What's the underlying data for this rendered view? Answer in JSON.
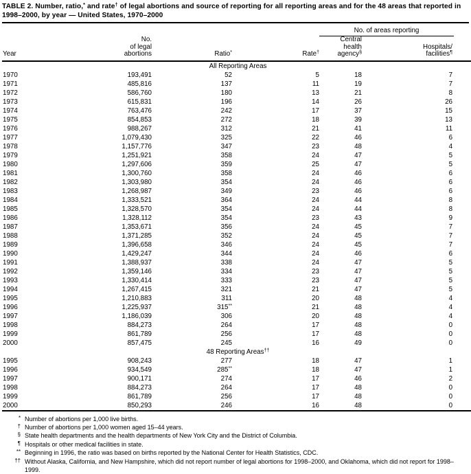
{
  "title": {
    "prefix": "TABLE 2. Number, ratio,",
    "sup1": "*",
    "mid": " and rate",
    "sup2": "†",
    "suffix": " of legal abortions and source of reporting for all reporting areas and for the 48 areas that reported in 1998–2000, by year — United States, 1970–2000"
  },
  "header": {
    "spanner": "No. of areas reporting",
    "columns": [
      {
        "l1": "Year",
        "sup": ""
      },
      {
        "l1": "No.",
        "l2": "of legal",
        "l3": "abortions",
        "sup": ""
      },
      {
        "l1": "Ratio",
        "sup": "*"
      },
      {
        "l1": "Rate",
        "sup": "†"
      },
      {
        "l1": "Central",
        "l2": "health",
        "l3": "agency",
        "sup": "§"
      },
      {
        "l1": "Hospitals/",
        "l2": "facilities",
        "sup": "¶"
      }
    ]
  },
  "sections": [
    {
      "header": "All Reporting Areas",
      "header_sup": "",
      "rows": [
        [
          "1970",
          "193,491",
          "52",
          "5",
          "18",
          "7"
        ],
        [
          "1971",
          "485,816",
          "137",
          "11",
          "19",
          "7"
        ],
        [
          "1972",
          "586,760",
          "180",
          "13",
          "21",
          "8"
        ],
        [
          "1973",
          "615,831",
          "196",
          "14",
          "26",
          "26"
        ],
        [
          "1974",
          "763,476",
          "242",
          "17",
          "37",
          "15"
        ],
        [
          "1975",
          "854,853",
          "272",
          "18",
          "39",
          "13"
        ],
        [
          "1976",
          "988,267",
          "312",
          "21",
          "41",
          "11"
        ],
        [
          "1977",
          "1,079,430",
          "325",
          "22",
          "46",
          "6"
        ],
        [
          "1978",
          "1,157,776",
          "347",
          "23",
          "48",
          "4"
        ],
        [
          "1979",
          "1,251,921",
          "358",
          "24",
          "47",
          "5"
        ],
        [
          "1980",
          "1,297,606",
          "359",
          "25",
          "47",
          "5"
        ],
        [
          "1981",
          "1,300,760",
          "358",
          "24",
          "46",
          "6"
        ],
        [
          "1982",
          "1,303,980",
          "354",
          "24",
          "46",
          "6"
        ],
        [
          "1983",
          "1,268,987",
          "349",
          "23",
          "46",
          "6"
        ],
        [
          "1984",
          "1,333,521",
          "364",
          "24",
          "44",
          "8"
        ],
        [
          "1985",
          "1,328,570",
          "354",
          "24",
          "44",
          "8"
        ],
        [
          "1986",
          "1,328,112",
          "354",
          "23",
          "43",
          "9"
        ],
        [
          "1987",
          "1,353,671",
          "356",
          "24",
          "45",
          "7"
        ],
        [
          "1988",
          "1,371,285",
          "352",
          "24",
          "45",
          "7"
        ],
        [
          "1989",
          "1,396,658",
          "346",
          "24",
          "45",
          "7"
        ],
        [
          "1990",
          "1,429,247",
          "344",
          "24",
          "46",
          "6"
        ],
        [
          "1991",
          "1,388,937",
          "338",
          "24",
          "47",
          "5"
        ],
        [
          "1992",
          "1,359,146",
          "334",
          "23",
          "47",
          "5"
        ],
        [
          "1993",
          "1,330,414",
          "333",
          "23",
          "47",
          "5"
        ],
        [
          "1994",
          "1,267,415",
          "321",
          "21",
          "47",
          "5"
        ],
        [
          "1995",
          "1,210,883",
          "311",
          "20",
          "48",
          "4"
        ],
        [
          "1996",
          "1,225,937",
          "315**",
          "21",
          "48",
          "4"
        ],
        [
          "1997",
          "1,186,039",
          "306",
          "20",
          "48",
          "4"
        ],
        [
          "1998",
          "884,273",
          "264",
          "17",
          "48",
          "0"
        ],
        [
          "1999",
          "861,789",
          "256",
          "17",
          "48",
          "0"
        ],
        [
          "2000",
          "857,475",
          "245",
          "16",
          "49",
          "0"
        ]
      ]
    },
    {
      "header": "48 Reporting Areas",
      "header_sup": "††",
      "rows": [
        [
          "1995",
          "908,243",
          "277",
          "18",
          "47",
          "1"
        ],
        [
          "1996",
          "934,549",
          "285**",
          "18",
          "47",
          "1"
        ],
        [
          "1997",
          "900,171",
          "274",
          "17",
          "46",
          "2"
        ],
        [
          "1998",
          "884,273",
          "264",
          "17",
          "48",
          "0"
        ],
        [
          "1999",
          "861,789",
          "256",
          "17",
          "48",
          "0"
        ],
        [
          "2000",
          "850,293",
          "246",
          "16",
          "48",
          "0"
        ]
      ]
    }
  ],
  "footnotes": [
    {
      "marker": "*",
      "text": "Number of abortions per 1,000 live births."
    },
    {
      "marker": "†",
      "text": "Number of abortions per 1,000 women aged 15–44 years."
    },
    {
      "marker": "§",
      "text": "State health departments and the health departments of New York City and the District of Columbia."
    },
    {
      "marker": "¶",
      "text": "Hospitals or other medical facilities in state."
    },
    {
      "marker": "**",
      "text": "Beginning in 1996, the ratio was based on births reported by the National Center for Health Statistics, CDC."
    },
    {
      "marker": "††",
      "text": "Without Alaska, California, and New Hampshire, which did not report number of legal abortions for 1998–2000, and Oklahoma, which did not report for 1998–1999."
    }
  ]
}
